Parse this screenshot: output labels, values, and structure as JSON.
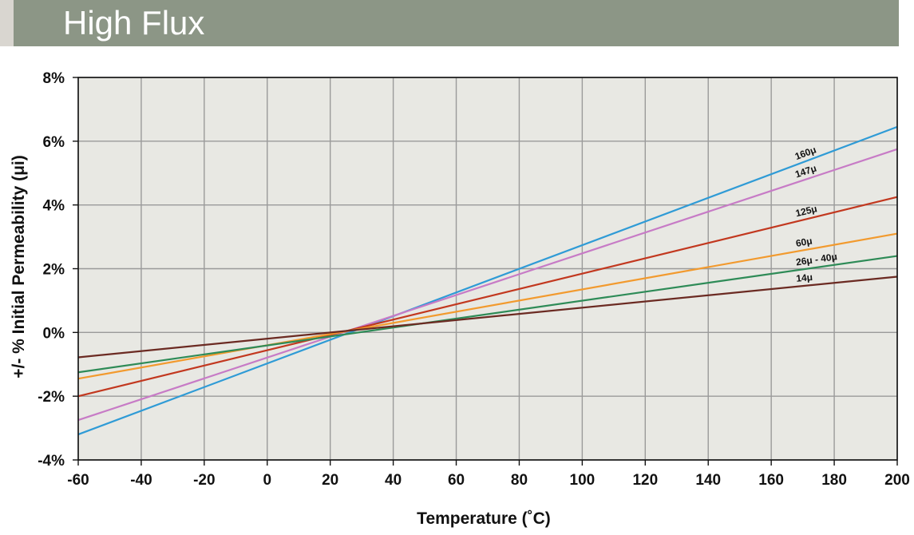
{
  "header": {
    "title": "High Flux"
  },
  "chart_data": {
    "type": "line",
    "title": "High Flux",
    "xlabel": "Temperature (˚C)",
    "ylabel": "+/- % Initial Permeability (μi)",
    "xlim": [
      -60,
      200
    ],
    "ylim": [
      -4,
      8
    ],
    "x_ticks": [
      "-60",
      "-40",
      "-20",
      "0",
      "20",
      "40",
      "60",
      "80",
      "100",
      "120",
      "140",
      "160",
      "180",
      "200"
    ],
    "y_ticks": [
      "8%",
      "6%",
      "4%",
      "2%",
      "0%",
      "-2%",
      "-4%"
    ],
    "grid": true,
    "series": [
      {
        "name": "160μ",
        "color": "#2f9bd6",
        "x": [
          -60,
          200
        ],
        "y": [
          -3.2,
          6.45
        ]
      },
      {
        "name": "147μ",
        "color": "#c77bc6",
        "x": [
          -60,
          200
        ],
        "y": [
          -2.75,
          5.75
        ]
      },
      {
        "name": "125μ",
        "color": "#c2381f",
        "x": [
          -60,
          200
        ],
        "y": [
          -2.0,
          4.25
        ]
      },
      {
        "name": "60μ",
        "color": "#f29a2e",
        "x": [
          -60,
          200
        ],
        "y": [
          -1.45,
          3.1
        ]
      },
      {
        "name": "26μ - 40μ",
        "color": "#2e8b57",
        "x": [
          -60,
          200
        ],
        "y": [
          -1.25,
          2.4
        ]
      },
      {
        "name": "14μ",
        "color": "#6b2a22",
        "x": [
          -60,
          200
        ],
        "y": [
          -0.78,
          1.75
        ]
      }
    ]
  }
}
